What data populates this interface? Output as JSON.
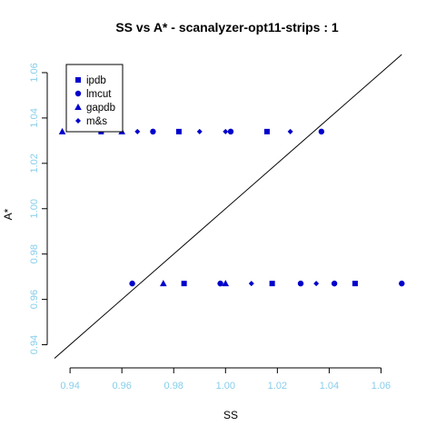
{
  "chart_data": {
    "type": "scatter",
    "title": "SS vs A* - scanalyzer-opt11-strips : 1",
    "xlabel": "SS",
    "ylabel": "A*",
    "xlim": [
      0.934,
      1.07
    ],
    "ylim": [
      0.933,
      1.068
    ],
    "xticks": [
      0.94,
      0.96,
      0.98,
      1.0,
      1.02,
      1.04,
      1.06
    ],
    "yticks": [
      0.94,
      0.96,
      0.98,
      1.0,
      1.02,
      1.04,
      1.06
    ],
    "xtick_labels": [
      "0.94",
      "0.96",
      "0.98",
      "1.00",
      "1.02",
      "1.04",
      "1.06"
    ],
    "ytick_labels": [
      "0.94",
      "0.96",
      "0.98",
      "1.00",
      "1.02",
      "1.04",
      "1.06"
    ],
    "legend_position": "top-left",
    "reference_line": "y = x",
    "colors": {
      "points": "#0000cc",
      "ticks": "#87ceeb",
      "axis": "#000000"
    },
    "series": [
      {
        "name": "ipdb",
        "marker": "square",
        "x": [
          0.952,
          0.982,
          1.016,
          0.984,
          1.018,
          1.05
        ],
        "y": [
          1.034,
          1.034,
          1.034,
          0.967,
          0.967,
          0.967
        ]
      },
      {
        "name": "lmcut",
        "marker": "circle",
        "x": [
          0.972,
          1.002,
          1.037,
          0.964,
          0.998,
          1.029,
          1.042,
          1.068
        ],
        "y": [
          1.034,
          1.034,
          1.034,
          0.967,
          0.967,
          0.967,
          0.967,
          0.967
        ]
      },
      {
        "name": "gapdb",
        "marker": "triangle",
        "x": [
          0.937,
          0.96,
          0.976,
          1.0
        ],
        "y": [
          1.034,
          1.034,
          0.967,
          0.967
        ]
      },
      {
        "name": "m&s",
        "marker": "diamond",
        "x": [
          0.966,
          0.99,
          1.0,
          1.025,
          1.01,
          1.035
        ],
        "y": [
          1.034,
          1.034,
          1.034,
          1.034,
          0.967,
          0.967
        ]
      }
    ]
  }
}
